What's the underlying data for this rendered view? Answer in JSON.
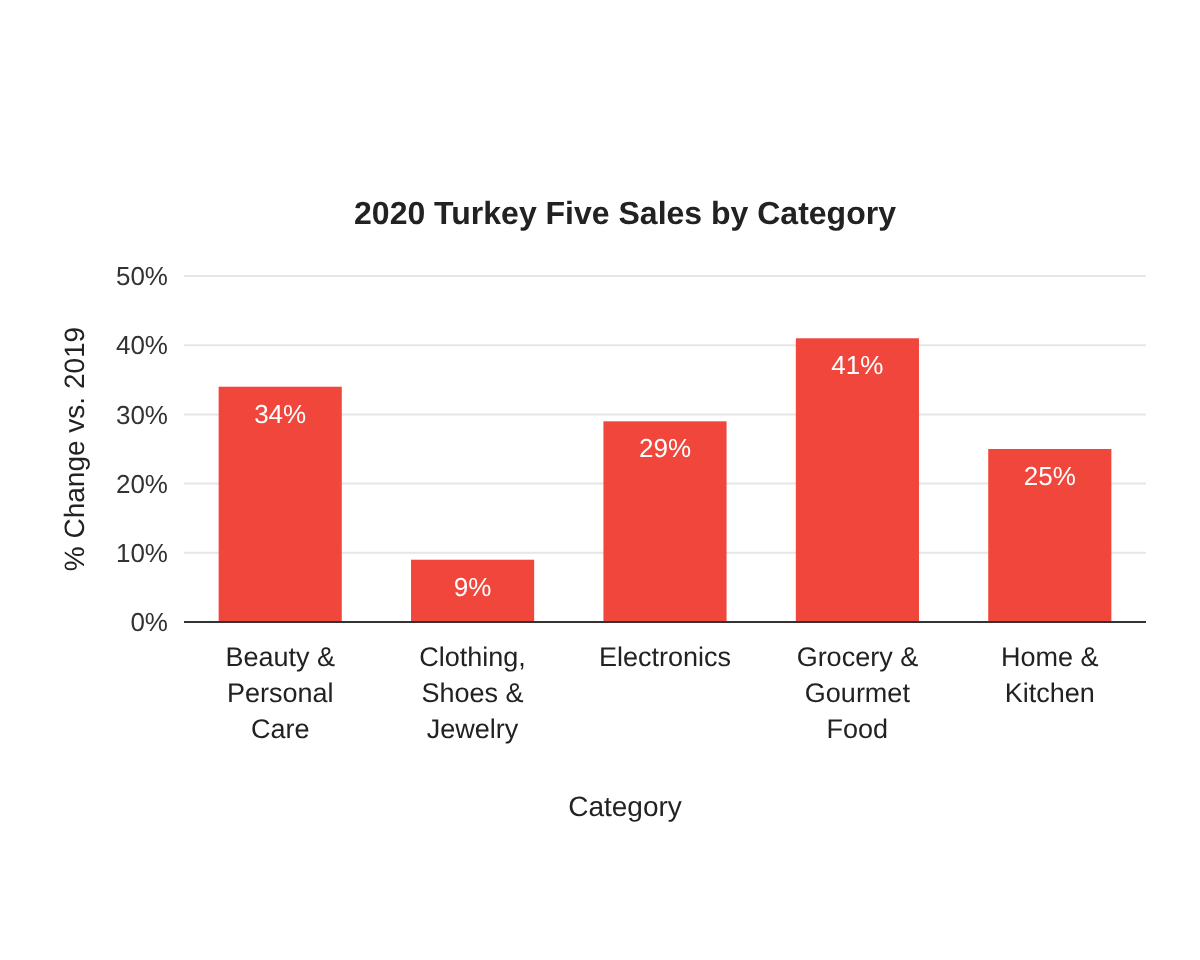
{
  "chart_data": {
    "type": "bar",
    "title": "2020 Turkey Five Sales by Category",
    "xlabel": "Category",
    "ylabel": "% Change vs. 2019",
    "categories": [
      "Beauty & Personal Care",
      "Clothing, Shoes & Jewelry",
      "Electronics",
      "Grocery & Gourmet Food",
      "Home & Kitchen"
    ],
    "values": [
      34,
      9,
      29,
      41,
      25
    ],
    "value_labels": [
      "34%",
      "9%",
      "29%",
      "41%",
      "25%"
    ],
    "color": "#f0463c",
    "ylim": [
      0,
      50
    ],
    "yticks": [
      {
        "value": 0,
        "label": "0%"
      },
      {
        "value": 10,
        "label": "10%"
      },
      {
        "value": 20,
        "label": "20%"
      },
      {
        "value": 30,
        "label": "30%"
      },
      {
        "value": 40,
        "label": "40%"
      },
      {
        "value": 50,
        "label": "50%"
      }
    ],
    "grid": "y"
  }
}
